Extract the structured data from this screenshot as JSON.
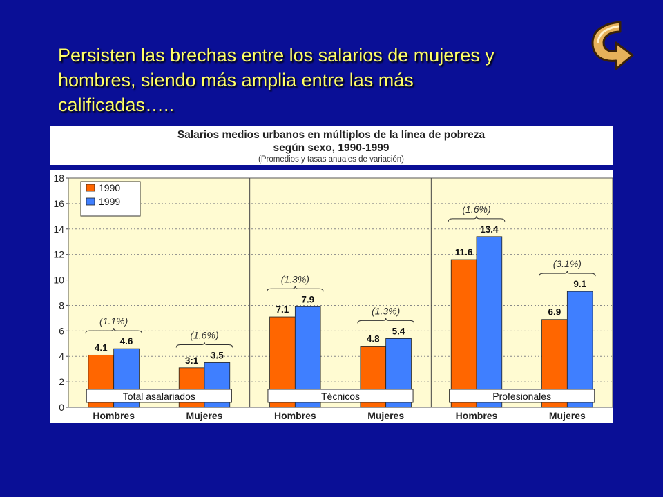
{
  "slide": {
    "title_lines": [
      "Persisten las brechas entre los salarios de mujeres y",
      "hombres, siendo más amplia entre las más",
      "calificadas….."
    ]
  },
  "chart_data": {
    "type": "bar",
    "title": "Salarios medios urbanos en múltiplos de la línea de pobreza",
    "title_line2": "según sexo, 1990-1999",
    "subtitle": "(Promedios y tasas anuales de variación)",
    "ylim": [
      0,
      18
    ],
    "yticks": [
      0,
      2,
      4,
      6,
      8,
      10,
      12,
      14,
      16,
      18
    ],
    "grid": true,
    "legend_position": "top-left",
    "categories": [
      "Hombres",
      "Mujeres",
      "Hombres",
      "Mujeres",
      "Hombres",
      "Mujeres"
    ],
    "groups": [
      {
        "label": "Total asalariados",
        "categories": [
          0,
          1
        ]
      },
      {
        "label": "Técnicos",
        "categories": [
          2,
          3
        ]
      },
      {
        "label": "Profesionales",
        "categories": [
          4,
          5
        ]
      }
    ],
    "series": [
      {
        "name": "1990",
        "color": "#ff6600",
        "values": [
          4.1,
          3.1,
          7.1,
          4.8,
          11.6,
          6.9
        ]
      },
      {
        "name": "1999",
        "color": "#3f7fff",
        "values": [
          4.6,
          3.5,
          7.9,
          5.4,
          13.4,
          9.1
        ]
      }
    ],
    "value_labels": [
      [
        "4.1",
        "3:1",
        "7.1",
        "4.8",
        "11.6",
        "6.9"
      ],
      [
        "4.6",
        "3.5",
        "7.9",
        "5.4",
        "13.4",
        "9.1"
      ]
    ],
    "annotations": [
      "(1.1%)",
      "(1.6%)",
      "(1.3%)",
      "(1.3%)",
      "(1.6%)",
      "(3.1%)"
    ]
  }
}
